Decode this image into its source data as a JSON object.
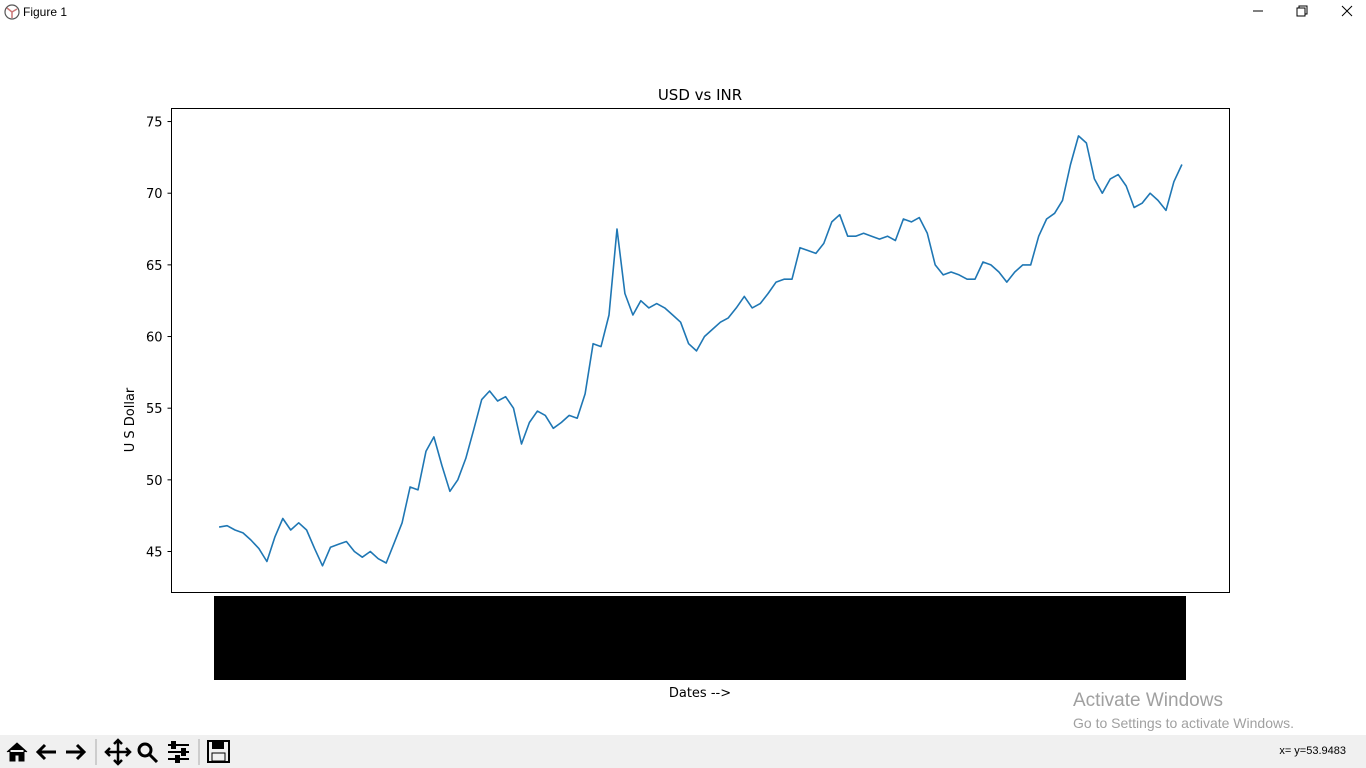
{
  "window": {
    "title": "Figure 1",
    "status": "x= y=53.9483",
    "watermark": "Activate Windows",
    "watermark_hint": "Go to Settings to activate Windows."
  },
  "chart_data": {
    "type": "line",
    "title": "USD vs INR",
    "x_label": "Dates -->",
    "y_label": "U S Dollar",
    "ylim": [
      42.14,
      75.91
    ],
    "yticks": [
      45,
      50,
      55,
      60,
      65,
      70,
      75
    ],
    "color": "#1f77b4",
    "grid": false,
    "values": [
      46.7,
      46.8,
      46.5,
      46.3,
      45.8,
      45.2,
      44.3,
      46.0,
      47.3,
      46.5,
      47.0,
      46.5,
      45.2,
      44.0,
      45.3,
      45.5,
      45.7,
      45.0,
      44.6,
      45.0,
      44.5,
      44.2,
      45.6,
      47.0,
      49.5,
      49.3,
      52.0,
      53.0,
      51.0,
      49.2,
      50.0,
      51.5,
      53.5,
      55.6,
      56.2,
      55.5,
      55.8,
      55.0,
      52.5,
      54.0,
      54.8,
      54.5,
      53.6,
      54.0,
      54.5,
      54.3,
      56.0,
      59.5,
      59.3,
      61.5,
      67.5,
      63.0,
      61.5,
      62.5,
      62.0,
      62.3,
      62.0,
      61.5,
      61.0,
      59.5,
      59.0,
      60.0,
      60.5,
      61.0,
      61.3,
      62.0,
      62.8,
      62.0,
      62.3,
      63.0,
      63.8,
      64.0,
      64.0,
      66.2,
      66.0,
      65.8,
      66.5,
      68.0,
      68.5,
      67.0,
      67.0,
      67.2,
      67.0,
      66.8,
      67.0,
      66.7,
      68.2,
      68.0,
      68.3,
      67.2,
      65.0,
      64.3,
      64.5,
      64.3,
      64.0,
      64.0,
      65.2,
      65.0,
      64.5,
      63.8,
      64.5,
      65.0,
      65.0,
      67.0,
      68.2,
      68.6,
      69.5,
      72.0,
      74.0,
      73.5,
      71.0,
      70.0,
      71.0,
      71.3,
      70.5,
      69.0,
      69.3,
      70.0,
      69.5,
      68.8,
      70.8,
      72.0
    ]
  }
}
